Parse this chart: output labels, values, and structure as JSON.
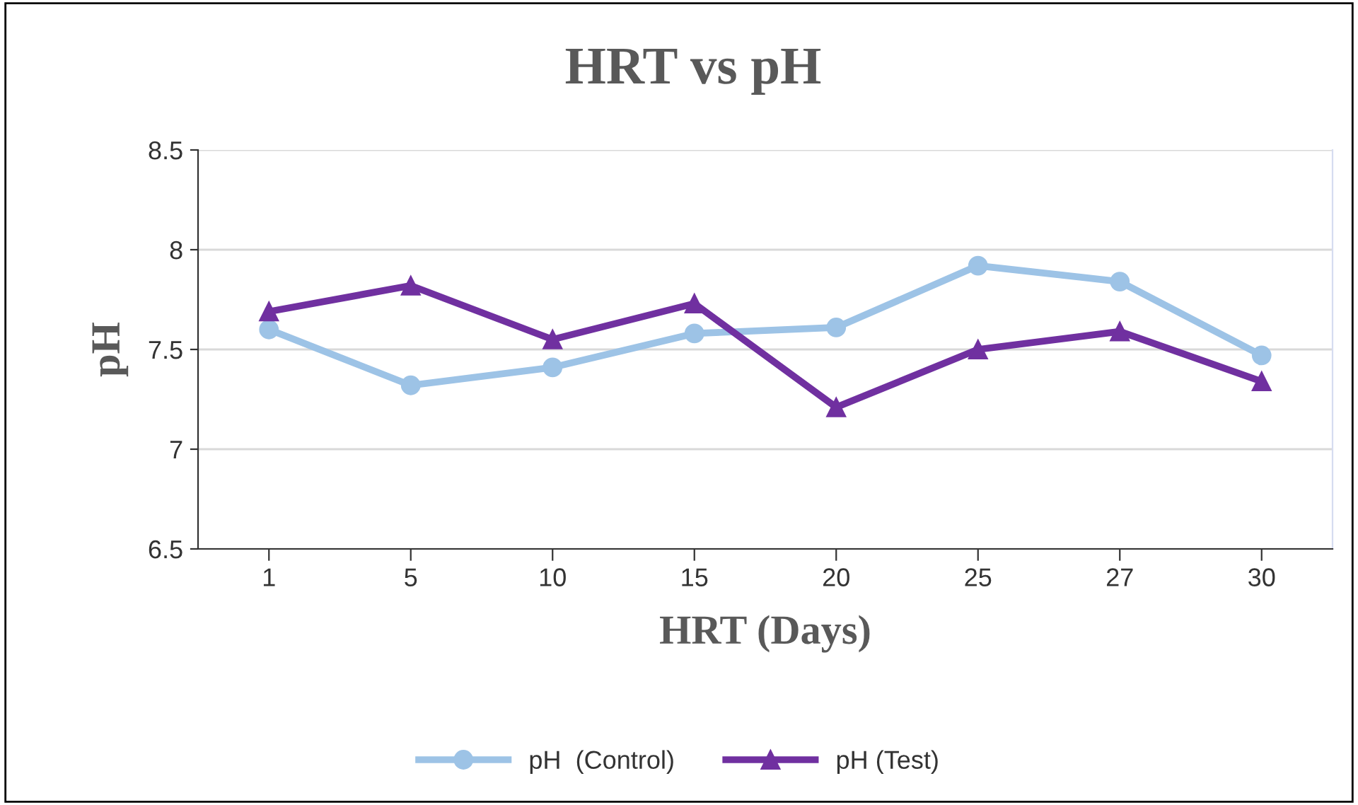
{
  "chart_data": {
    "type": "line",
    "title": "HRT vs pH",
    "xlabel": "HRT (Days)",
    "ylabel": "pH",
    "categories": [
      "1",
      "5",
      "10",
      "15",
      "20",
      "25",
      "27",
      "30"
    ],
    "series": [
      {
        "name": "pH  (Control)",
        "color": "#9dc3e6",
        "marker": "circle",
        "values": [
          7.6,
          7.32,
          7.41,
          7.58,
          7.61,
          7.92,
          7.84,
          7.47
        ]
      },
      {
        "name": "pH (Test)",
        "color": "#7030a0",
        "marker": "triangle",
        "values": [
          7.69,
          7.82,
          7.55,
          7.73,
          7.21,
          7.5,
          7.59,
          7.34
        ]
      }
    ],
    "ylim": [
      6.5,
      8.5
    ],
    "yticks": [
      {
        "value": 6.5,
        "label": "6.5"
      },
      {
        "value": 7,
        "label": "7"
      },
      {
        "value": 7.5,
        "label": "7.5"
      },
      {
        "value": 8,
        "label": "8"
      },
      {
        "value": 8.5,
        "label": "8.5"
      }
    ],
    "grid": "y",
    "legend": "bottom",
    "line_style": "solid"
  }
}
